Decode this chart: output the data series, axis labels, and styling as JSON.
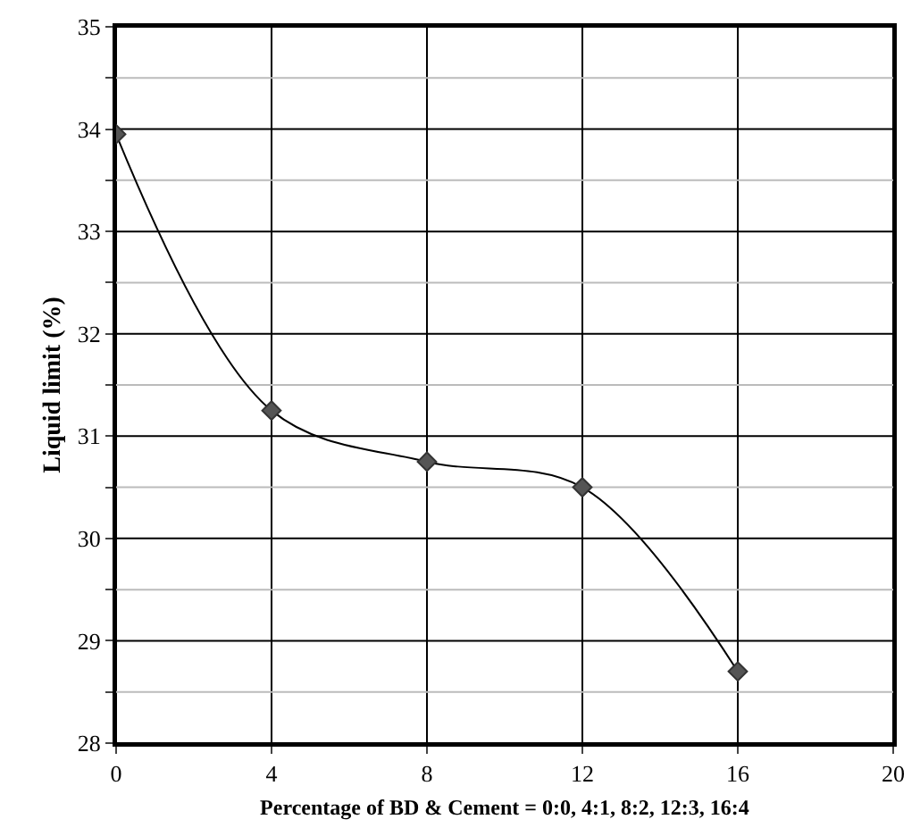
{
  "chart_data": {
    "type": "line",
    "xlabel": "Percentage of BD & Cement = 0:0, 4:1, 8:2, 12:3, 16:4",
    "ylabel": "Liquid limit (%)",
    "x": [
      0,
      4,
      8,
      12,
      16
    ],
    "series": [
      {
        "color": "#000000",
        "values": [
          33.95,
          31.25,
          30.75,
          30.5,
          28.7
        ]
      }
    ],
    "xlim": [
      0,
      20
    ],
    "xticks": [
      0,
      4,
      8,
      12,
      16,
      20
    ],
    "ylim": [
      28,
      35
    ],
    "yticks": [
      28,
      {
        "value": 28.5,
        "label": null
      },
      29,
      {
        "value": 29.5,
        "label": null
      },
      30,
      {
        "value": 30.5,
        "label": null
      },
      31,
      {
        "value": 31.5,
        "label": null
      },
      32,
      {
        "value": 32.5,
        "label": null
      },
      33,
      {
        "value": 33.5,
        "label": null
      },
      34,
      {
        "value": 34.5,
        "label": null
      },
      35
    ],
    "grid": true,
    "marker": "diamond",
    "legend": false
  }
}
